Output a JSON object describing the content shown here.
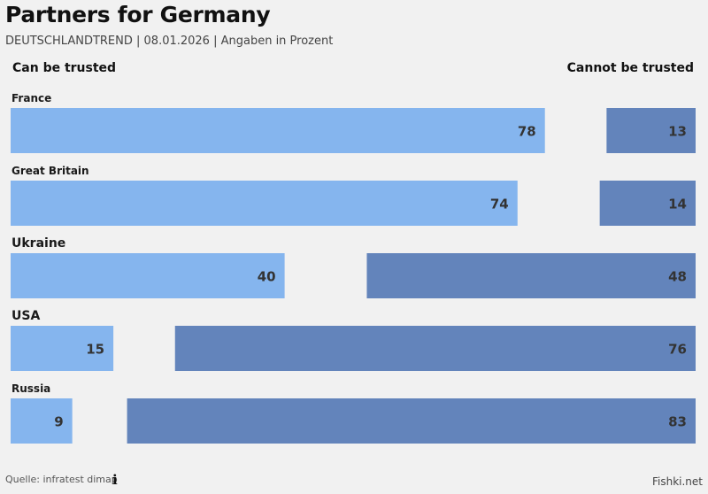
{
  "header": {
    "title": "Partners for Germany",
    "subtitle": "DEUTSCHLANDTREND | 08.01.2026 | Angaben in Prozent"
  },
  "legend": {
    "left": "Can be trusted",
    "right": "Cannot be trusted"
  },
  "colors": {
    "trusted": "#85b5ee",
    "not_trusted": "#6384bb",
    "label": "#333333"
  },
  "chart_data": {
    "type": "bar",
    "categories": [
      "France",
      "Great Britain",
      "Ukraine",
      "USA",
      "Russia"
    ],
    "series": [
      {
        "name": "Can be trusted",
        "values": [
          78,
          74,
          40,
          15,
          9
        ]
      },
      {
        "name": "Cannot be trusted",
        "values": [
          13,
          14,
          48,
          76,
          83
        ]
      }
    ],
    "ylim": [
      0,
      100
    ],
    "grid": false,
    "legend_placement": "top"
  },
  "footer": {
    "source": "Quelle: infratest dimap",
    "info_icon": "info-icon",
    "watermark": "Fishki.net"
  }
}
